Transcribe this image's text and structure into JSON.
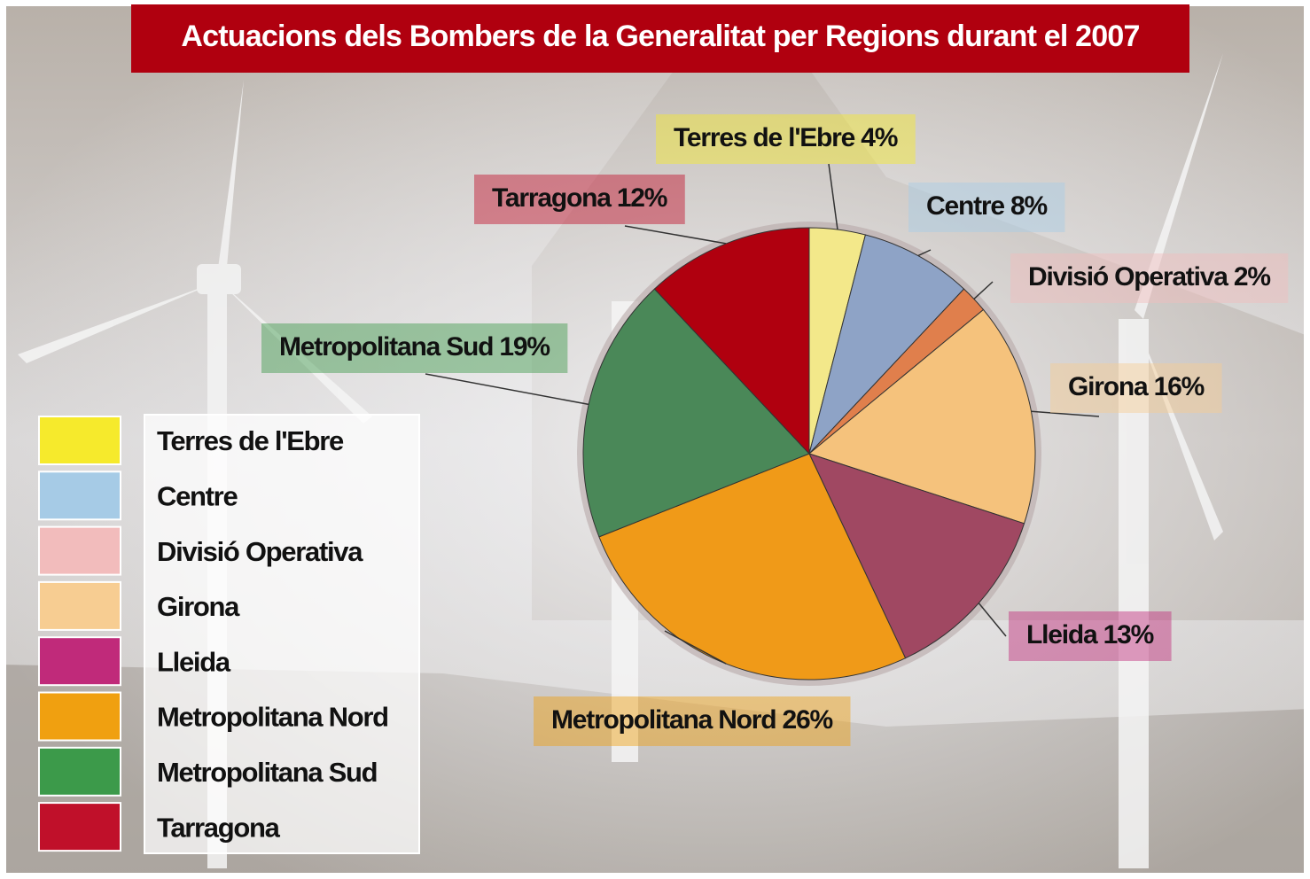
{
  "chart_data": {
    "type": "pie",
    "title": "Actuacions dels Bombers de la Generalitat per Regions durant el 2007",
    "categories": [
      "Terres de l'Ebre",
      "Centre",
      "Divisió Operativa",
      "Girona",
      "Lleida",
      "Metropolitana Nord",
      "Metropolitana Sud",
      "Tarragona"
    ],
    "values": [
      4,
      8,
      2,
      16,
      13,
      26,
      19,
      12
    ],
    "value_labels": [
      "Terres de l'Ebre 4%",
      "Centre 8%",
      "Divisió Operativa 2%",
      "Girona 16%",
      "Lleida 13%",
      "Metropolitana Nord 26%",
      "Metropolitana Sud 19%",
      "Tarragona  12%"
    ],
    "colors": [
      "#f3e88a",
      "#8ea3c6",
      "#e07f4c",
      "#f5c27c",
      "#a04862",
      "#f09a18",
      "#4a8858",
      "#b0000f"
    ],
    "legend_colors": [
      "#f6ea2c",
      "#a6cbe6",
      "#f2bcbc",
      "#f7cd92",
      "#c02a7a",
      "#f0a010",
      "#3c9a4a",
      "#c0102a"
    ],
    "legend": "left"
  }
}
